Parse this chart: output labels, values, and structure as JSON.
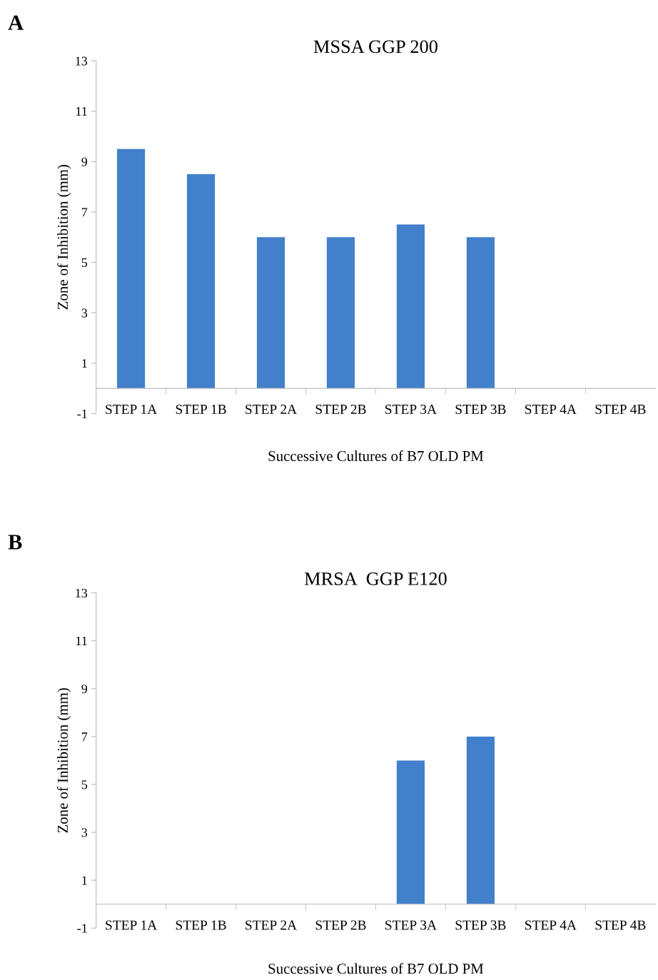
{
  "chart_data": [
    {
      "type": "bar",
      "title": "MSSA GGP 200",
      "xlabel": "Successive Cultures of B7 OLD PM",
      "ylabel": "Zone of Inhibition (mm)",
      "annotations": [
        "A"
      ],
      "categories": [
        "STEP 1A",
        "STEP 1B",
        "STEP 2A",
        "STEP 2B",
        "STEP 3A",
        "STEP 3B",
        "STEP 4A",
        "STEP 4B"
      ],
      "values": [
        9.5,
        8.5,
        6,
        6,
        6.5,
        6,
        0,
        0
      ],
      "color": "#4280cc",
      "ylim": [
        -1,
        13
      ],
      "yticks": [
        -1,
        1,
        3,
        5,
        7,
        9,
        11,
        13
      ],
      "grid": false,
      "legend": false
    },
    {
      "type": "bar",
      "title": "MRSA  GGP E120",
      "xlabel": "Successive Cultures of B7 OLD PM",
      "ylabel": "Zone of Inhibition (mm)",
      "annotations": [
        "B"
      ],
      "categories": [
        "STEP 1A",
        "STEP 1B",
        "STEP 2A",
        "STEP 2B",
        "STEP 3A",
        "STEP 3B",
        "STEP 4A",
        "STEP 4B"
      ],
      "values": [
        0,
        0,
        0,
        0,
        6,
        7,
        0,
        0
      ],
      "color": "#4280cc",
      "ylim": [
        -1,
        13
      ],
      "yticks": [
        -1,
        1,
        3,
        5,
        7,
        9,
        11,
        13
      ],
      "grid": false,
      "legend": false
    }
  ]
}
